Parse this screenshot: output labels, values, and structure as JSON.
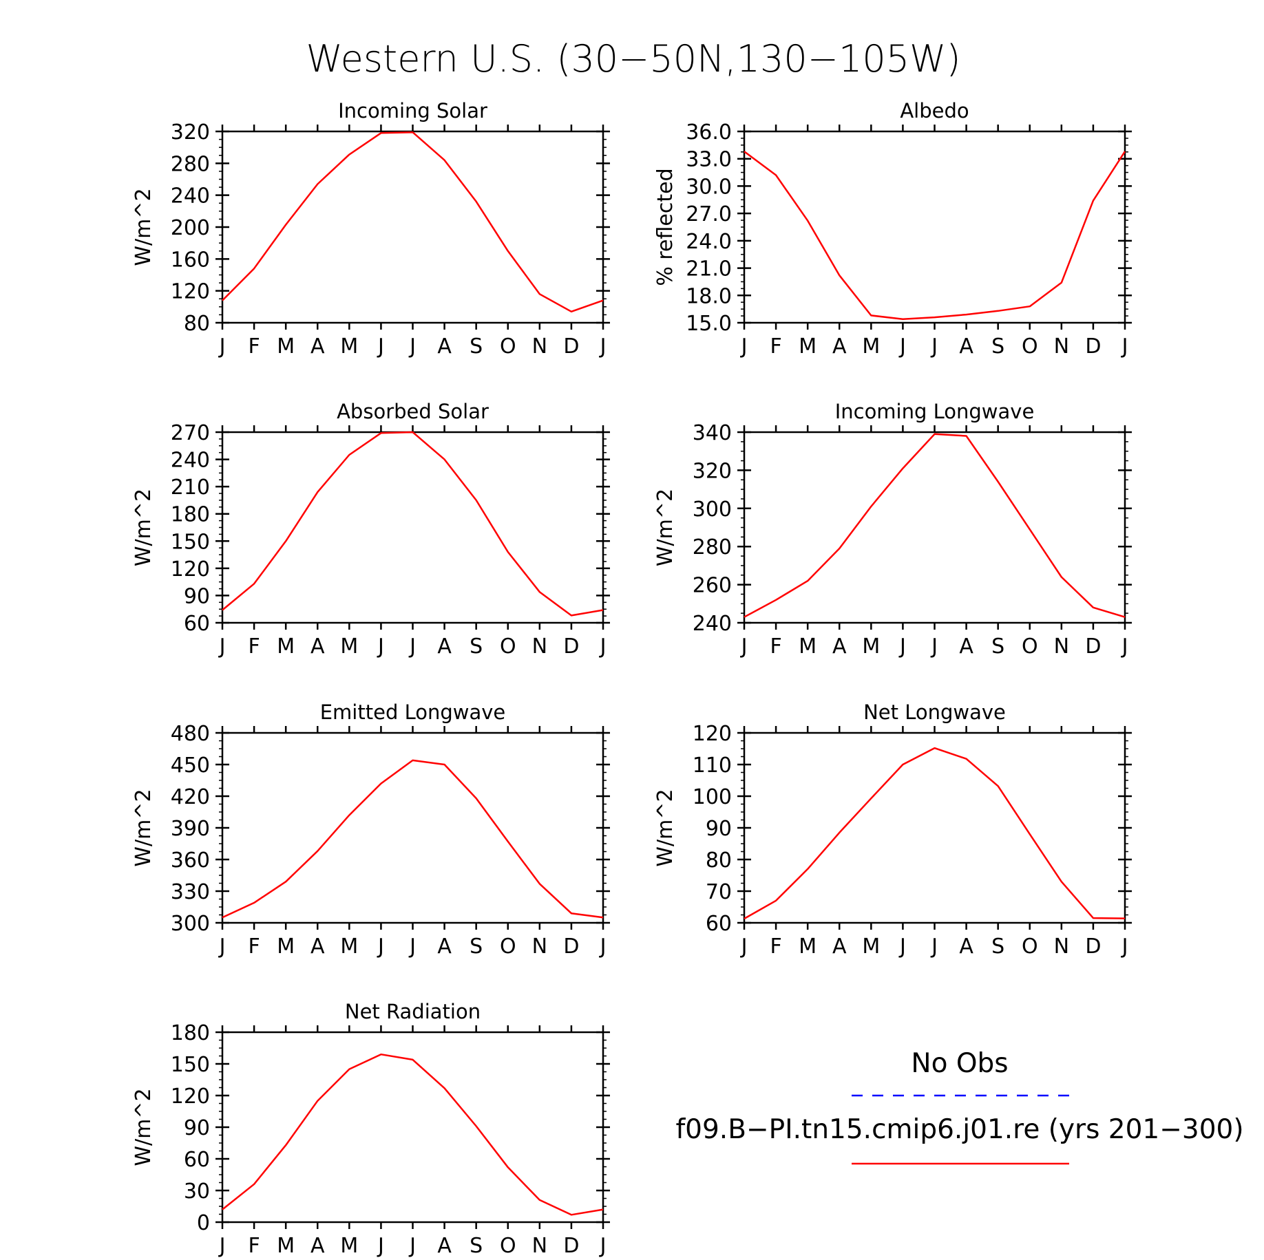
{
  "figure": {
    "title": "Western U.S. (30−50N,130−105W)"
  },
  "colors": {
    "model": "#ff0000",
    "obs": "#0000ff",
    "axis": "#000000"
  },
  "legend": {
    "obs_label": "No Obs",
    "model_label": "f09.B−PI.tn15.cmip6.j01.re (yrs 201−300)"
  },
  "chart_data": [
    {
      "type": "line",
      "title": "Incoming Solar",
      "ylabel": "W/m^2",
      "ylim": [
        80,
        320
      ],
      "yticks": [
        "80",
        "120",
        "160",
        "200",
        "240",
        "280",
        "320"
      ],
      "categories": [
        "J",
        "F",
        "M",
        "A",
        "M",
        "J",
        "J",
        "A",
        "S",
        "O",
        "N",
        "D",
        "J"
      ],
      "series": [
        {
          "values": [
            108,
            148,
            203,
            254,
            291,
            318,
            319,
            284,
            232,
            170,
            116,
            94,
            108
          ]
        }
      ]
    },
    {
      "type": "line",
      "title": "Albedo",
      "ylabel": "% reflected",
      "ylim": [
        15,
        36
      ],
      "yticks": [
        "15.0",
        "18.0",
        "21.0",
        "24.0",
        "27.0",
        "30.0",
        "33.0",
        "36.0"
      ],
      "categories": [
        "J",
        "F",
        "M",
        "A",
        "M",
        "J",
        "J",
        "A",
        "S",
        "O",
        "N",
        "D",
        "J"
      ],
      "series": [
        {
          "values": [
            33.8,
            31.2,
            26.2,
            20.2,
            15.8,
            15.4,
            15.6,
            15.9,
            16.3,
            16.8,
            19.4,
            28.4,
            33.8
          ]
        }
      ]
    },
    {
      "type": "line",
      "title": "Absorbed Solar",
      "ylabel": "W/m^2",
      "ylim": [
        60,
        270
      ],
      "yticks": [
        "60",
        "90",
        "120",
        "150",
        "180",
        "210",
        "240",
        "270"
      ],
      "categories": [
        "J",
        "F",
        "M",
        "A",
        "M",
        "J",
        "J",
        "A",
        "S",
        "O",
        "N",
        "D",
        "J"
      ],
      "series": [
        {
          "values": [
            74,
            103,
            150,
            204,
            245,
            269,
            270,
            240,
            195,
            138,
            94,
            68,
            74
          ]
        }
      ]
    },
    {
      "type": "line",
      "title": "Incoming Longwave",
      "ylabel": "W/m^2",
      "ylim": [
        240,
        340
      ],
      "yticks": [
        "240",
        "260",
        "280",
        "300",
        "320",
        "340"
      ],
      "categories": [
        "J",
        "F",
        "M",
        "A",
        "M",
        "J",
        "J",
        "A",
        "S",
        "O",
        "N",
        "D",
        "J"
      ],
      "series": [
        {
          "values": [
            243,
            252,
            262,
            279,
            301,
            321,
            339,
            338,
            314,
            289,
            264,
            248,
            243
          ]
        }
      ]
    },
    {
      "type": "line",
      "title": "Emitted Longwave",
      "ylabel": "W/m^2",
      "ylim": [
        300,
        480
      ],
      "yticks": [
        "300",
        "330",
        "360",
        "390",
        "420",
        "450",
        "480"
      ],
      "categories": [
        "J",
        "F",
        "M",
        "A",
        "M",
        "J",
        "J",
        "A",
        "S",
        "O",
        "N",
        "D",
        "J"
      ],
      "series": [
        {
          "values": [
            305,
            319,
            339,
            368,
            402,
            432,
            454,
            450,
            418,
            377,
            337,
            309,
            305
          ]
        }
      ]
    },
    {
      "type": "line",
      "title": "Net Longwave",
      "ylabel": "W/m^2",
      "ylim": [
        60,
        120
      ],
      "yticks": [
        "60",
        "70",
        "80",
        "90",
        "100",
        "110",
        "120"
      ],
      "categories": [
        "J",
        "F",
        "M",
        "A",
        "M",
        "J",
        "J",
        "A",
        "S",
        "O",
        "N",
        "D",
        "J"
      ],
      "series": [
        {
          "values": [
            61.3,
            67.0,
            77.0,
            88.5,
            99.3,
            110.0,
            115.2,
            111.8,
            103.2,
            88.0,
            73.0,
            61.5,
            61.4
          ]
        }
      ]
    },
    {
      "type": "line",
      "title": "Net Radiation",
      "ylabel": "W/m^2",
      "ylim": [
        0,
        180
      ],
      "yticks": [
        "0",
        "30",
        "60",
        "90",
        "120",
        "150",
        "180"
      ],
      "categories": [
        "J",
        "F",
        "M",
        "A",
        "M",
        "J",
        "J",
        "A",
        "S",
        "O",
        "N",
        "D",
        "J"
      ],
      "series": [
        {
          "values": [
            12,
            36,
            73,
            115,
            145,
            159,
            154,
            127,
            91,
            52,
            21,
            7,
            12
          ]
        }
      ]
    }
  ]
}
